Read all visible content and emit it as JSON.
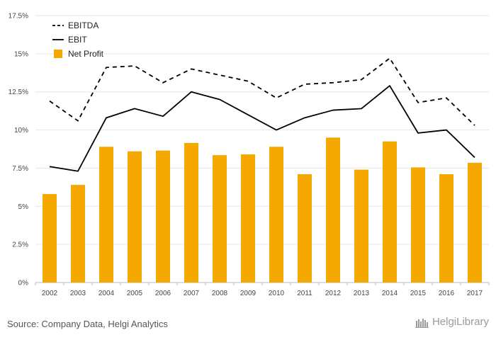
{
  "chart_data": {
    "type": "bar",
    "title": "",
    "xlabel": "",
    "ylabel": "",
    "ylim": [
      0,
      17.5
    ],
    "yticks": [
      0,
      2.5,
      5,
      7.5,
      10,
      12.5,
      15,
      17.5
    ],
    "ytick_labels": [
      "0%",
      "2.5%",
      "5%",
      "7.5%",
      "10%",
      "12.5%",
      "15%",
      "17.5%"
    ],
    "grid": true,
    "legend_position": "top-left",
    "categories": [
      "2002",
      "2003",
      "2004",
      "2005",
      "2006",
      "2007",
      "2008",
      "2009",
      "2010",
      "2011",
      "2012",
      "2013",
      "2014",
      "2015",
      "2016",
      "2017"
    ],
    "series": [
      {
        "name": "EBITDA",
        "type": "line",
        "style": "dashed",
        "color": "#000000",
        "values": [
          11.9,
          10.6,
          14.1,
          14.2,
          13.1,
          14.0,
          13.6,
          13.2,
          12.1,
          13.0,
          13.1,
          13.3,
          14.7,
          11.8,
          12.1,
          10.3
        ]
      },
      {
        "name": "EBIT",
        "type": "line",
        "style": "solid",
        "color": "#000000",
        "values": [
          7.6,
          7.3,
          10.8,
          11.4,
          10.9,
          12.5,
          12.0,
          11.0,
          10.0,
          10.8,
          11.3,
          11.4,
          12.9,
          9.8,
          10.0,
          8.2
        ]
      },
      {
        "name": "Net Profit",
        "type": "bar",
        "color": "#F5A800",
        "values": [
          5.8,
          6.4,
          8.9,
          8.6,
          8.65,
          9.15,
          8.35,
          8.4,
          8.9,
          7.1,
          9.5,
          7.4,
          9.25,
          7.55,
          7.1,
          7.85
        ]
      }
    ]
  },
  "footer": {
    "source": "Source: Company Data, Helgi Analytics",
    "brand": "HelgiLibrary"
  }
}
